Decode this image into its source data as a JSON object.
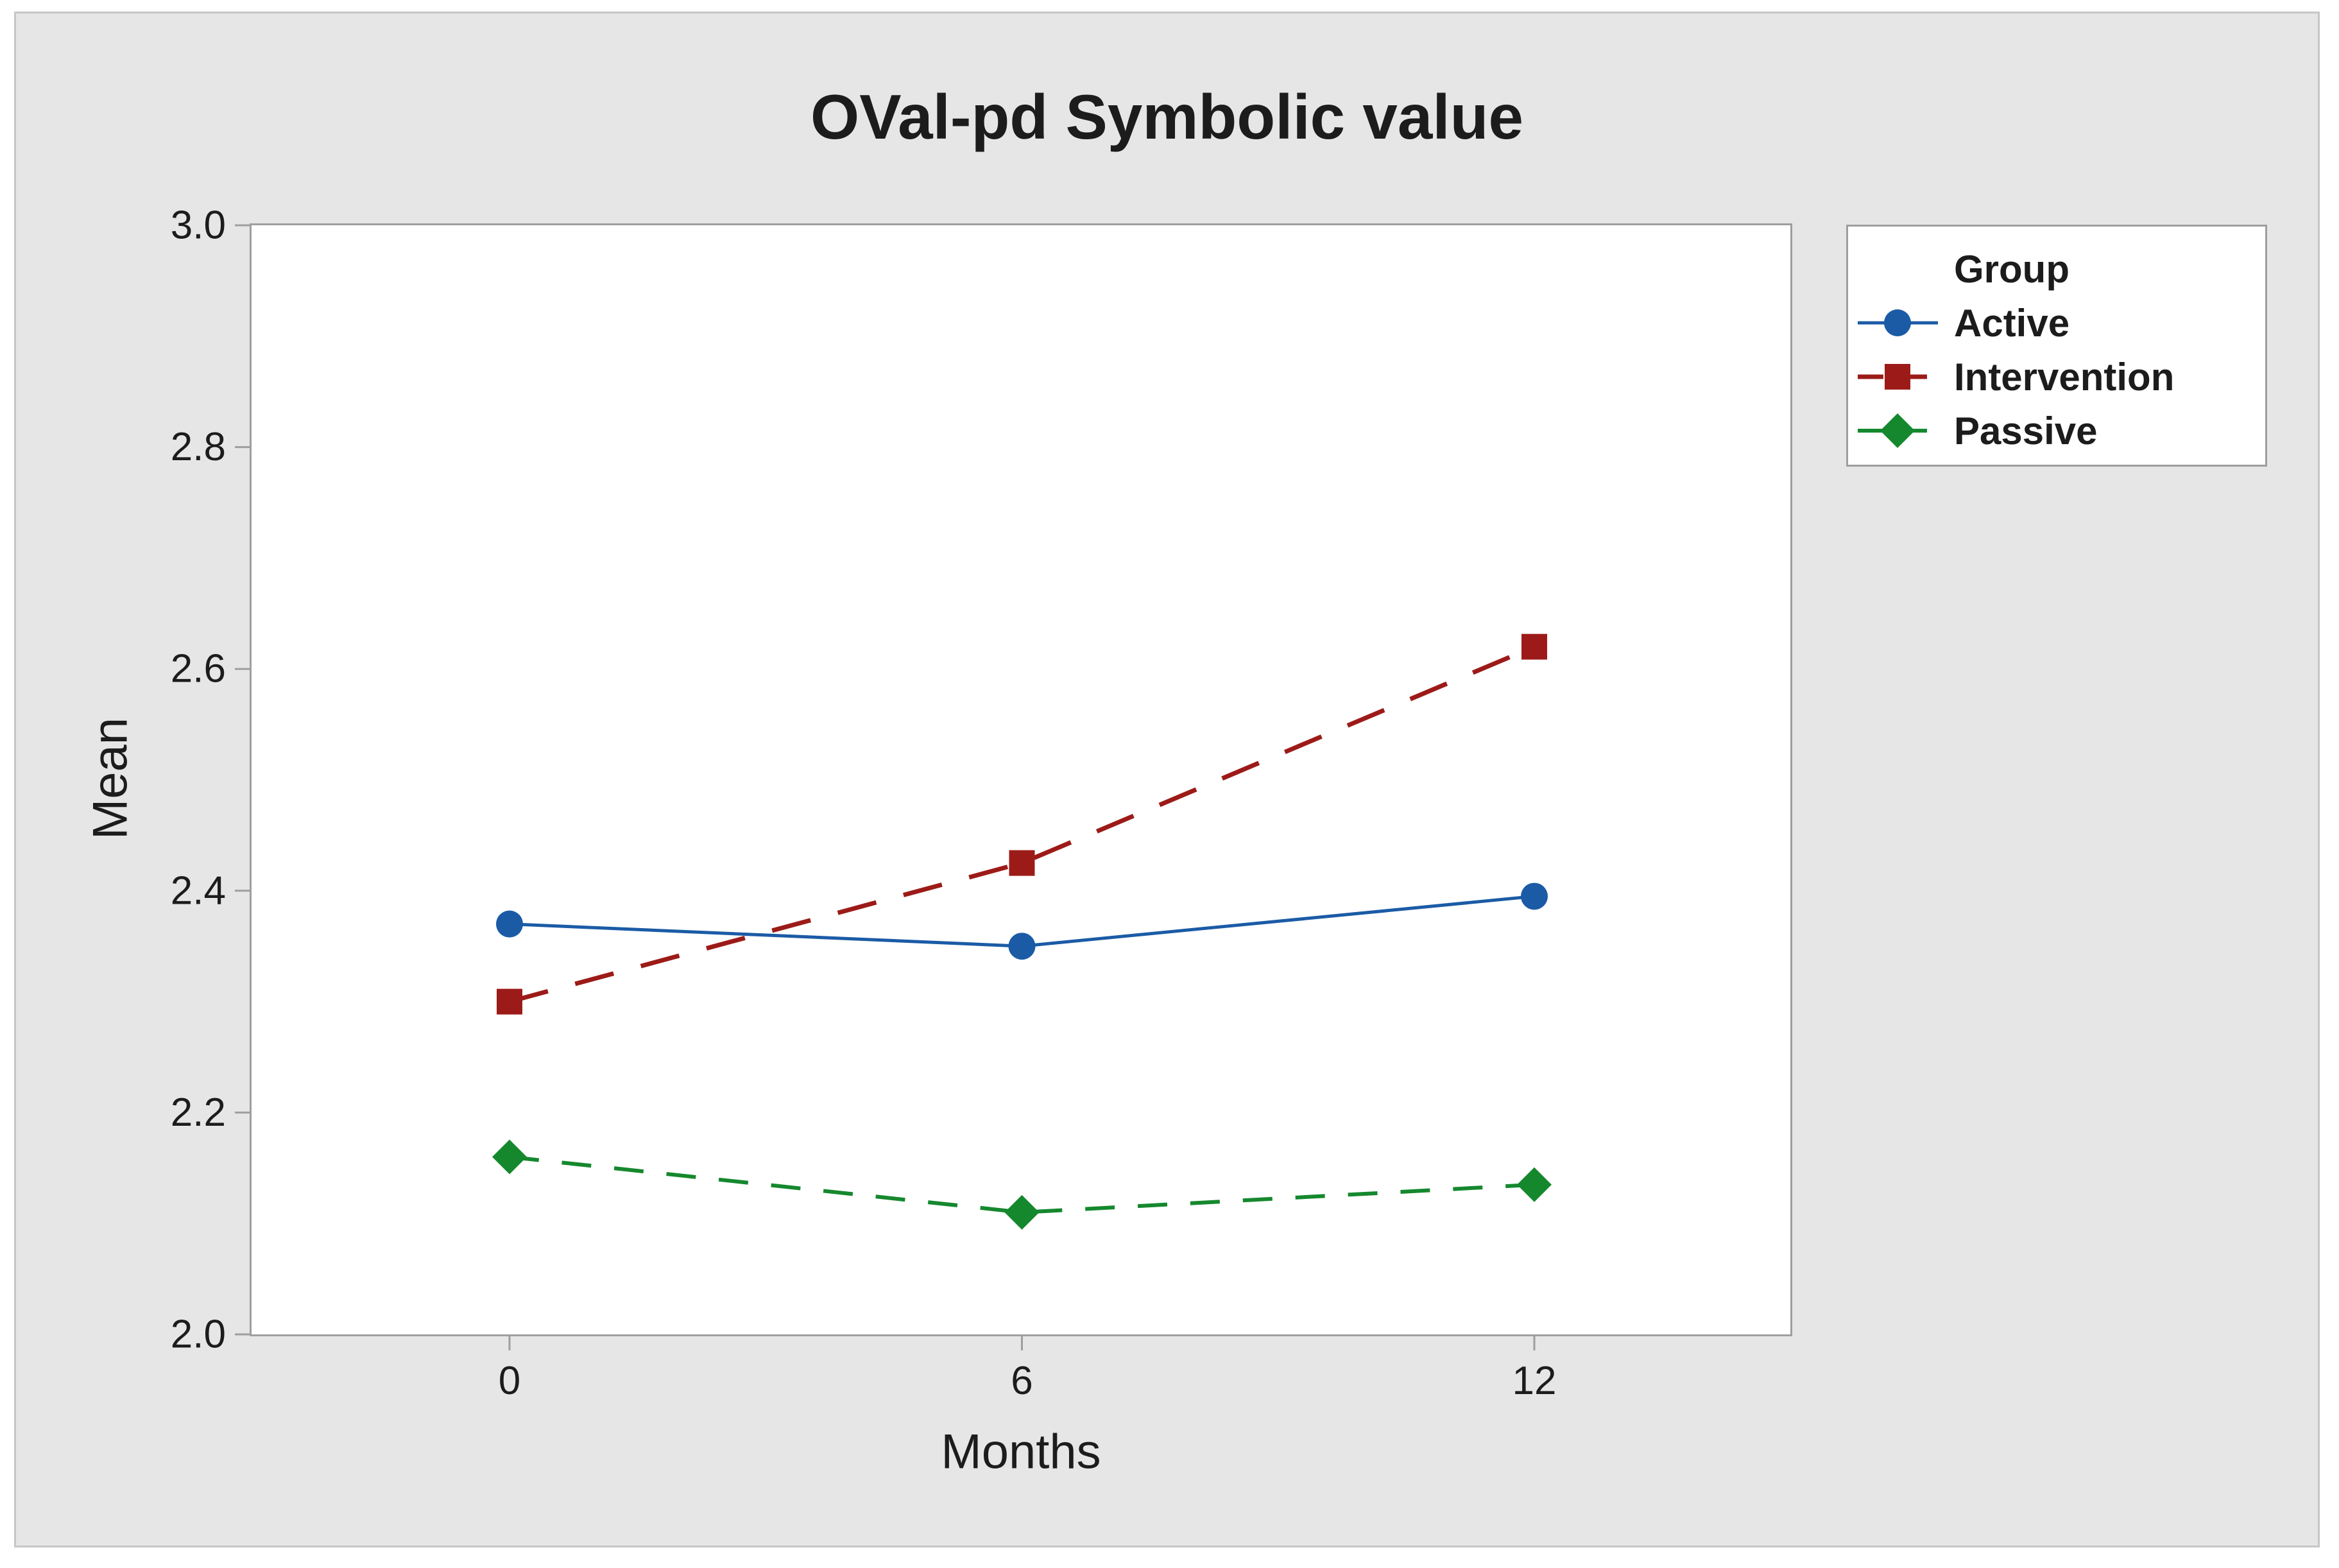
{
  "chart_data": {
    "type": "line",
    "title": "OVal-pd Symbolic value",
    "xlabel": "Months",
    "ylabel": "Mean",
    "x": [
      0,
      6,
      12
    ],
    "x_tick_labels": [
      "0",
      "6",
      "12"
    ],
    "y_ticks": [
      2.0,
      2.2,
      2.4,
      2.6,
      2.8,
      3.0
    ],
    "y_tick_labels": [
      "2.0",
      "2.2",
      "2.4",
      "2.6",
      "2.8",
      "3.0"
    ],
    "ylim": [
      2.0,
      3.0
    ],
    "grid": false,
    "legend_title": "Group",
    "legend_position": "right-top",
    "series": [
      {
        "name": "Active",
        "values": [
          2.37,
          2.35,
          2.395
        ],
        "color": "#1b5ba6",
        "marker": "circle",
        "line": "solid"
      },
      {
        "name": "Intervention",
        "values": [
          2.3,
          2.425,
          2.62
        ],
        "color": "#9c1b18",
        "marker": "square",
        "line": "long-dash"
      },
      {
        "name": "Passive",
        "values": [
          2.16,
          2.11,
          2.135
        ],
        "color": "#15882e",
        "marker": "diamond",
        "line": "dash"
      }
    ]
  },
  "appearance": {
    "panel-bg": "#e6e6e6",
    "plot-bg": "#ffffff",
    "panel-border": "#c6c6c6",
    "axis-color": "#9e9e9e",
    "text-color": "#1c1c1c"
  }
}
